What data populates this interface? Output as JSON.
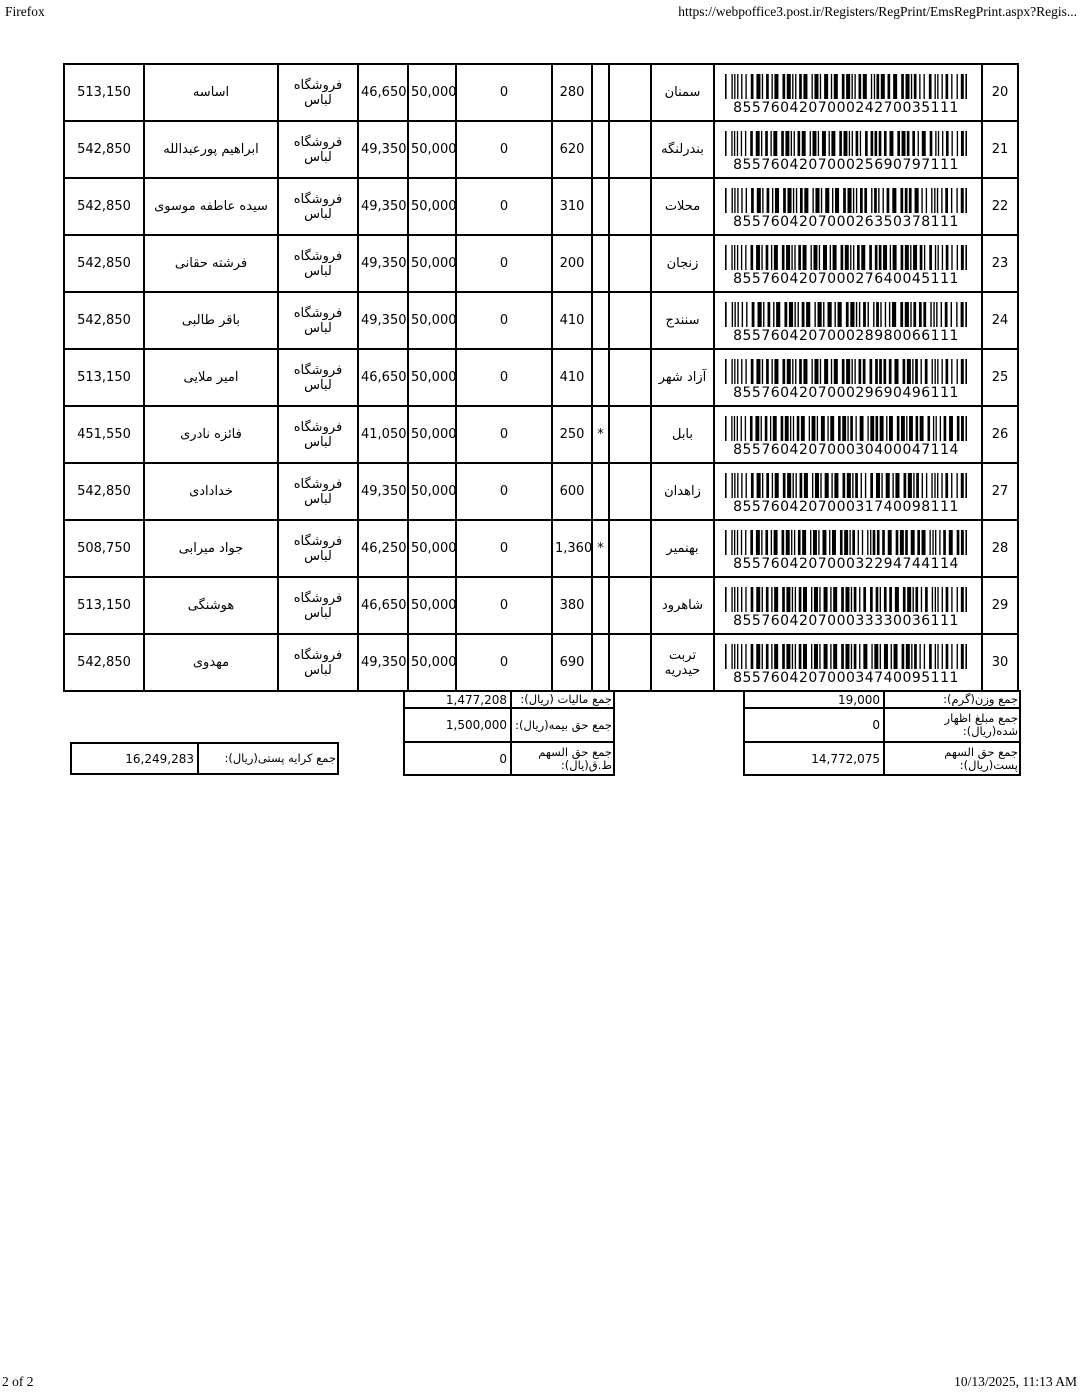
{
  "page": {
    "browser": "Firefox",
    "url": "https://webpoffice3.post.ir/Registers/RegPrint/EmsRegPrint.aspx?Regis...",
    "page_indicator": "2 of 2",
    "timestamp": "10/13/2025, 11:13 AM"
  },
  "table": {
    "rows": [
      {
        "row_no": "20",
        "price": "513,150",
        "name": "اساسه",
        "store": "فروشگاه لباس",
        "fee": "46,650",
        "insured": "50,000",
        "declared": "0",
        "weight": "280",
        "flag": "",
        "city": "سمنان",
        "barcode": "855760420700024270035111"
      },
      {
        "row_no": "21",
        "price": "542,850",
        "name": "ابراهیم پورعبدالله",
        "store": "فروشگاه لباس",
        "fee": "49,350",
        "insured": "50,000",
        "declared": "0",
        "weight": "620",
        "flag": "",
        "city": "بندرلنگه",
        "barcode": "855760420700025690797111"
      },
      {
        "row_no": "22",
        "price": "542,850",
        "name": "سیده عاطفه موسوی",
        "store": "فروشگاه لباس",
        "fee": "49,350",
        "insured": "50,000",
        "declared": "0",
        "weight": "310",
        "flag": "",
        "city": "محلات",
        "barcode": "855760420700026350378111"
      },
      {
        "row_no": "23",
        "price": "542,850",
        "name": "فرشته حقانی",
        "store": "فروشگاه لباس",
        "fee": "49,350",
        "insured": "50,000",
        "declared": "0",
        "weight": "200",
        "flag": "",
        "city": "زنجان",
        "barcode": "855760420700027640045111"
      },
      {
        "row_no": "24",
        "price": "542,850",
        "name": "باقر طالبی",
        "store": "فروشگاه لباس",
        "fee": "49,350",
        "insured": "50,000",
        "declared": "0",
        "weight": "410",
        "flag": "",
        "city": "سنندج",
        "barcode": "855760420700028980066111"
      },
      {
        "row_no": "25",
        "price": "513,150",
        "name": "امیر ملایی",
        "store": "فروشگاه لباس",
        "fee": "46,650",
        "insured": "50,000",
        "declared": "0",
        "weight": "410",
        "flag": "",
        "city": "آزاد شهر",
        "barcode": "855760420700029690496111"
      },
      {
        "row_no": "26",
        "price": "451,550",
        "name": "فائزه نادری",
        "store": "فروشگاه لباس",
        "fee": "41,050",
        "insured": "50,000",
        "declared": "0",
        "weight": "250",
        "flag": "*",
        "city": "بابل",
        "barcode": "855760420700030400047114"
      },
      {
        "row_no": "27",
        "price": "542,850",
        "name": "خدادادی",
        "store": "فروشگاه لباس",
        "fee": "49,350",
        "insured": "50,000",
        "declared": "0",
        "weight": "600",
        "flag": "",
        "city": "زاهدان",
        "barcode": "855760420700031740098111"
      },
      {
        "row_no": "28",
        "price": "508,750",
        "name": "جواد میرابی",
        "store": "فروشگاه لباس",
        "fee": "46,250",
        "insured": "50,000",
        "declared": "0",
        "weight": "1,360",
        "flag": "*",
        "city": "بهنمیر",
        "barcode": "855760420700032294744114"
      },
      {
        "row_no": "29",
        "price": "513,150",
        "name": "هوشنگی",
        "store": "فروشگاه لباس",
        "fee": "46,650",
        "insured": "50,000",
        "declared": "0",
        "weight": "380",
        "flag": "",
        "city": "شاهرود",
        "barcode": "855760420700033330036111"
      },
      {
        "row_no": "30",
        "price": "542,850",
        "name": "مهدوی",
        "store": "فروشگاه لباس",
        "fee": "49,350",
        "insured": "50,000",
        "declared": "0",
        "weight": "690",
        "flag": "",
        "city": "تربت حیدریه",
        "barcode": "855760420700034740095111"
      }
    ]
  },
  "totals": {
    "tax_sum": {
      "label": "جمع مالیات (ریال):",
      "value": "1,477,208"
    },
    "insurance_sum": {
      "label": "جمع حق بیمه(ریال):",
      "value": "1,500,000"
    },
    "tq_share_sum": {
      "label": "جمع حق السهم ط.ق(یال):",
      "value": "0"
    },
    "weight_sum": {
      "label": "جمع وزن(گرم):",
      "value": "19,000"
    },
    "declared_sum": {
      "label": "جمع مبلغ اظهار شده(ریال):",
      "value": "0"
    },
    "post_share_sum": {
      "label": "جمع حق السهم پست(ریال):",
      "value": "14,772,075"
    },
    "postage_sum": {
      "label": "جمع کرایه پستی(ریال):",
      "value": "16,249,283"
    }
  }
}
